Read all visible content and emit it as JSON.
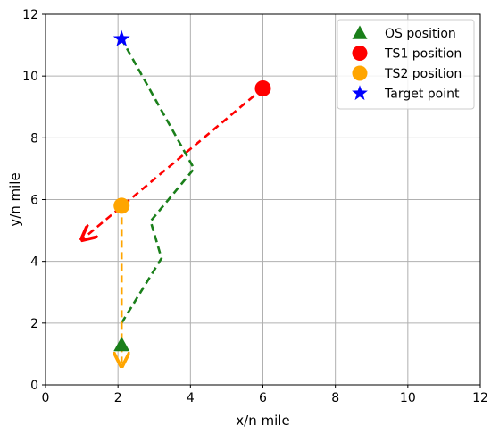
{
  "chart_data": {
    "type": "line",
    "title": "",
    "xlabel": "x/n mile",
    "ylabel": "y/n mile",
    "xlim": [
      0,
      12
    ],
    "ylim": [
      0,
      12
    ],
    "xticks": [
      "0",
      "2",
      "4",
      "6",
      "8",
      "10",
      "12"
    ],
    "yticks": [
      "0",
      "2",
      "4",
      "6",
      "8",
      "10",
      "12"
    ],
    "grid": true,
    "legend_position": "top-right",
    "legend": [
      {
        "label": "OS position",
        "marker": "triangle",
        "color": "#1a7f1a"
      },
      {
        "label": "TS1 position",
        "marker": "circle",
        "color": "#ff0000"
      },
      {
        "label": "TS2 position",
        "marker": "circle",
        "color": "#ffa500"
      },
      {
        "label": "Target point",
        "marker": "star",
        "color": "#0000ff"
      }
    ],
    "series": [
      {
        "color": "#1a7f1a",
        "style": "dashed",
        "x": [
          2.1,
          3.2,
          2.9,
          4.1,
          2.1
        ],
        "y": [
          2.0,
          4.1,
          5.3,
          7.0,
          11.2
        ]
      },
      {
        "color": "#ff0000",
        "style": "dashed",
        "arrow_end": true,
        "x": [
          6.0,
          1.0
        ],
        "y": [
          9.6,
          4.7
        ]
      },
      {
        "color": "#ffa500",
        "style": "dashed",
        "arrow_end": true,
        "x": [
          2.1,
          2.1
        ],
        "y": [
          5.8,
          0.6
        ]
      }
    ],
    "points": [
      {
        "label": "OS position",
        "marker": "triangle",
        "color": "#1a7f1a",
        "x": 2.1,
        "y": 1.3
      },
      {
        "label": "TS1 position",
        "marker": "circle",
        "color": "#ff0000",
        "x": 6.0,
        "y": 9.6
      },
      {
        "label": "TS2 position",
        "marker": "circle",
        "color": "#ffa500",
        "x": 2.1,
        "y": 5.8
      },
      {
        "label": "Target point",
        "marker": "star",
        "color": "#0000ff",
        "x": 2.1,
        "y": 11.2
      }
    ]
  }
}
